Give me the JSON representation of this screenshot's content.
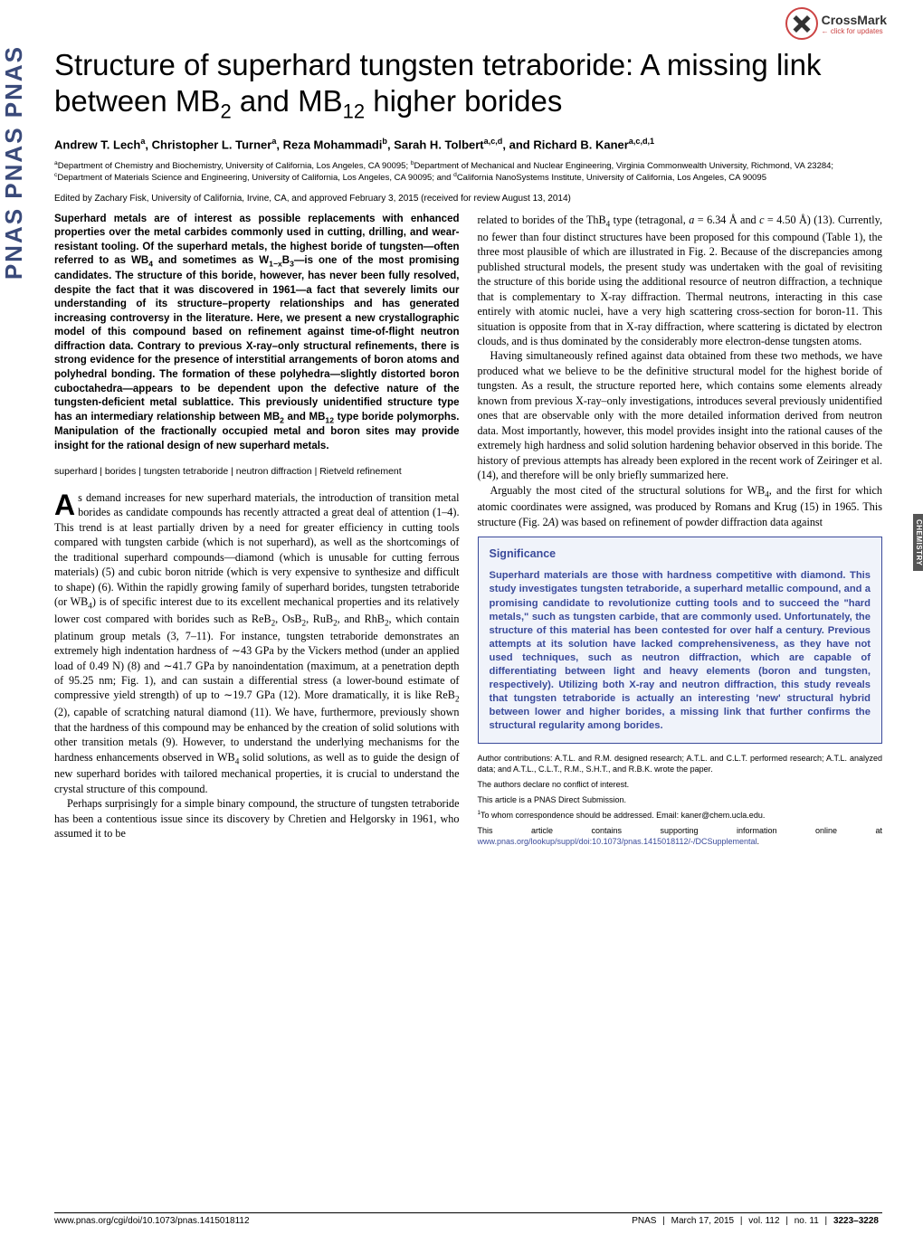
{
  "crossmark": {
    "title": "CrossMark",
    "sub": "← click for updates"
  },
  "sidebar_text": "PNAS  PNAS  PNAS",
  "side_tab": "CHEMISTRY",
  "title_html": "Structure of superhard tungsten tetraboride: A missing link between MB<sub>2</sub> and MB<sub>12</sub> higher borides",
  "authors_html": "Andrew T. Lech<sup>a</sup>, Christopher L. Turner<sup>a</sup>, Reza Mohammadi<sup>b</sup>, Sarah H. Tolbert<sup>a,c,d</sup>, and Richard B. Kaner<sup>a,c,d,1</sup>",
  "affiliations_html": "<sup>a</sup>Department of Chemistry and Biochemistry, University of California, Los Angeles, CA 90095; <sup>b</sup>Department of Mechanical and Nuclear Engineering, Virginia Commonwealth University, Richmond, VA 23284; <sup>c</sup>Department of Materials Science and Engineering, University of California, Los Angeles, CA 90095; and <sup>d</sup>California NanoSystems Institute, University of California, Los Angeles, CA 90095",
  "edited": "Edited by Zachary Fisk, University of California, Irvine, CA, and approved February 3, 2015 (received for review August 13, 2014)",
  "abstract_html": "Superhard metals are of interest as possible replacements with enhanced properties over the metal carbides commonly used in cutting, drilling, and wear-resistant tooling. Of the superhard metals, the highest boride of tungsten—often referred to as WB<sub>4</sub> and sometimes as W<sub>1−x</sub>B<sub>3</sub>—is one of the most promising candidates. The structure of this boride, however, has never been fully resolved, despite the fact that it was discovered in 1961—a fact that severely limits our understanding of its structure–property relationships and has generated increasing controversy in the literature. Here, we present a new crystallographic model of this compound based on refinement against time-of-flight neutron diffraction data. Contrary to previous X-ray–only structural refinements, there is strong evidence for the presence of interstitial arrangements of boron atoms and polyhedral bonding. The formation of these polyhedra—slightly distorted boron cuboctahedra—appears to be dependent upon the defective nature of the tungsten-deficient metal sublattice. This previously unidentified structure type has an intermediary relationship between MB<sub>2</sub> and MB<sub>12</sub> type boride polymorphs. Manipulation of the fractionally occupied metal and boron sites may provide insight for the rational design of new superhard metals.",
  "keywords": "superhard | borides | tungsten tetraboride | neutron diffraction | Rietveld refinement",
  "body_p1_html": "As demand increases for new superhard materials, the introduction of transition metal borides as candidate compounds has recently attracted a great deal of attention (1–4). This trend is at least partially driven by a need for greater efficiency in cutting tools compared with tungsten carbide (which is not superhard), as well as the shortcomings of the traditional superhard compounds—diamond (which is unusable for cutting ferrous materials) (5) and cubic boron nitride (which is very expensive to synthesize and difficult to shape) (6). Within the rapidly growing family of superhard borides, tungsten tetraboride (or WB<sub>4</sub>) is of specific interest due to its excellent mechanical properties and its relatively lower cost compared with borides such as ReB<sub>2</sub>, OsB<sub>2</sub>, RuB<sub>2</sub>, and RhB<sub>2</sub>, which contain platinum group metals (3, 7–11). For instance, tungsten tetraboride demonstrates an extremely high indentation hardness of ∼43 GPa by the Vickers method (under an applied load of 0.49 N) (8) and ∼41.7 GPa by nanoindentation (maximum, at a penetration depth of 95.25 nm; Fig. 1), and can sustain a differential stress (a lower-bound estimate of compressive yield strength) of up to ∼19.7 GPa (12). More dramatically, it is like ReB<sub>2</sub> (2), capable of scratching natural diamond (11). We have, furthermore, previously shown that the hardness of this compound may be enhanced by the creation of solid solutions with other transition metals (9). However, to understand the underlying mechanisms for the hardness enhancements observed in WB<sub>4</sub> solid solutions, as well as to guide the design of new superhard borides with tailored mechanical properties, it is crucial to understand the crystal structure of this compound.",
  "body_p2": "Perhaps surprisingly for a simple binary compound, the structure of tungsten tetraboride has been a contentious issue since its discovery by Chretien and Helgorsky in 1961, who assumed it to be",
  "col2_p1_html": "related to borides of the ThB<sub>4</sub> type (tetragonal, <i>a</i> = 6.34 Å and <i>c</i> = 4.50 Å) (13). Currently, no fewer than four distinct structures have been proposed for this compound (Table 1), the three most plausible of which are illustrated in Fig. 2. Because of the discrepancies among published structural models, the present study was undertaken with the goal of revisiting the structure of this boride using the additional resource of neutron diffraction, a technique that is complementary to X-ray diffraction. Thermal neutrons, interacting in this case entirely with atomic nuclei, have a very high scattering cross-section for boron-11. This situation is opposite from that in X-ray diffraction, where scattering is dictated by electron clouds, and is thus dominated by the considerably more electron-dense tungsten atoms.",
  "col2_p2_html": "Having simultaneously refined against data obtained from these two methods, we have produced what we believe to be the definitive structural model for the highest boride of tungsten. As a result, the structure reported here, which contains some elements already known from previous X-ray–only investigations, introduces several previously unidentified ones that are observable only with the more detailed information derived from neutron data. Most importantly, however, this model provides insight into the rational causes of the extremely high hardness and solid solution hardening behavior observed in this boride. The history of previous attempts has already been explored in the recent work of Zeiringer et al. (14), and therefore will be only briefly summarized here.",
  "col2_p3_html": "Arguably the most cited of the structural solutions for WB<sub>4</sub>, and the first for which atomic coordinates were assigned, was produced by Romans and Krug (15) in 1965. This structure (Fig. 2<i>A</i>) was based on refinement of powder diffraction data against",
  "significance": {
    "title": "Significance",
    "body": "Superhard materials are those with hardness competitive with diamond. This study investigates tungsten tetraboride, a superhard metallic compound, and a promising candidate to revolutionize cutting tools and to succeed the \"hard metals,\" such as tungsten carbide, that are commonly used. Unfortunately, the structure of this material has been contested for over half a century. Previous attempts at its solution have lacked comprehensiveness, as they have not used techniques, such as neutron diffraction, which are capable of differentiating between light and heavy elements (boron and tungsten, respectively). Utilizing both X-ray and neutron diffraction, this study reveals that tungsten tetraboride is actually an interesting 'new' structural hybrid between lower and higher borides, a missing link that further confirms the structural regularity among borides."
  },
  "author_contrib": {
    "p1": "Author contributions: A.T.L. and R.M. designed research; A.T.L. and C.L.T. performed research; A.T.L. analyzed data; and A.T.L., C.L.T., R.M., S.H.T., and R.B.K. wrote the paper.",
    "p2": "The authors declare no conflict of interest.",
    "p3": "This article is a PNAS Direct Submission.",
    "p4_html": "<sup>1</sup>To whom correspondence should be addressed. Email: kaner@chem.ucla.edu.",
    "p5_html": "This article contains supporting information online at <a href=\"#\">www.pnas.org/lookup/suppl/doi:10.1073/pnas.1415018112/-/DCSupplemental</a>."
  },
  "footer": {
    "left": "www.pnas.org/cgi/doi/10.1073/pnas.1415018112",
    "journal": "PNAS",
    "date": "March 17, 2015",
    "vol": "vol. 112",
    "no": "no. 11",
    "pages": "3223–3228"
  },
  "styles": {
    "page_bg": "#ffffff",
    "accent": "#3a4a9a",
    "sig_bg": "#f0f3fa",
    "tab_bg": "#555555"
  }
}
